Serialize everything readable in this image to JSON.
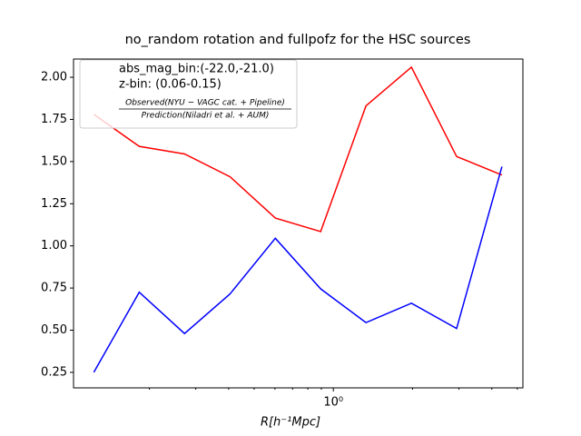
{
  "chart_data": {
    "type": "line",
    "title": "no_random rotation and fullpofz for the HSC sources",
    "xlabel": "R[h⁻¹Mpc]",
    "x": [
      0.123,
      0.183,
      0.272,
      0.405,
      0.602,
      0.895,
      1.33,
      1.98,
      2.94,
      4.37
    ],
    "series": [
      {
        "color": "#ff0000",
        "values": [
          1.78,
          1.59,
          1.545,
          1.41,
          1.165,
          1.085,
          1.83,
          2.06,
          1.53,
          1.42
        ]
      },
      {
        "color": "#0000ff",
        "values": [
          0.25,
          0.725,
          0.48,
          0.715,
          1.045,
          0.745,
          0.545,
          0.66,
          0.51,
          1.47
        ]
      }
    ],
    "xscale": "log",
    "xlim": [
      0.103,
      5.25
    ],
    "xticks": [
      {
        "value": 1,
        "label": "10⁰"
      }
    ],
    "xminorticks": [
      0.2,
      0.3,
      0.4,
      0.5,
      0.6,
      0.7,
      0.8,
      0.9,
      2,
      3,
      4,
      5
    ],
    "ylim": [
      0.158,
      2.108
    ],
    "yticks": [
      {
        "value": 0.25,
        "label": "0.25"
      },
      {
        "value": 0.5,
        "label": "0.50"
      },
      {
        "value": 0.75,
        "label": "0.75"
      },
      {
        "value": 1,
        "label": "1.00"
      },
      {
        "value": 1.25,
        "label": "1.25"
      },
      {
        "value": 1.5,
        "label": "1.50"
      },
      {
        "value": 1.75,
        "label": "1.75"
      },
      {
        "value": 2,
        "label": "2.00"
      }
    ],
    "legend": {
      "corner": "upper left",
      "lines": [
        "abs_mag_bin:(-22.0,-21.0)",
        "z-bin: (0.06-0.15)"
      ],
      "fraction": {
        "numerator": "Observed(NYU − VAGC cat. + Pipeline)",
        "denominator": "Prediction(Niladri et al. + AUM)"
      }
    }
  }
}
